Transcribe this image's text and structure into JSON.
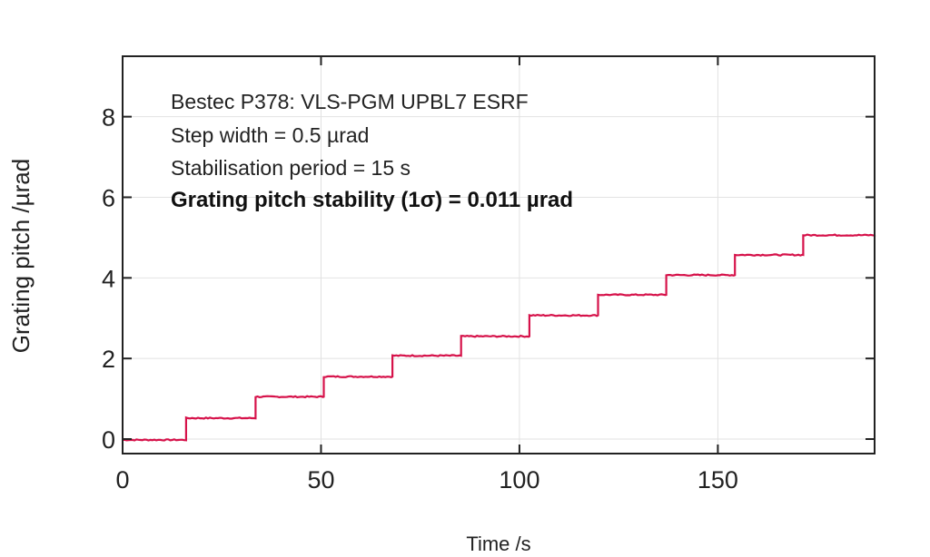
{
  "chart_data": {
    "type": "line",
    "title": "",
    "xlabel": "Time /s",
    "ylabel": "Grating pitch /µrad",
    "xlim": [
      0,
      189.5
    ],
    "ylim": [
      -0.36,
      9.5
    ],
    "xticks": [
      0,
      50,
      100,
      150
    ],
    "yticks": [
      0,
      2,
      4,
      6,
      8
    ],
    "grid": true,
    "annotations": [
      "Bestec P378: VLS-PGM UPBL7 ESRF",
      "Step width = 0.5 µrad",
      "Stabilisation period = 15 s",
      "Grating pitch stability (1σ) = 0.011 µrad"
    ],
    "series": [
      {
        "name": "Grating pitch",
        "color": "#d6124a",
        "step_times": [
          0,
          16,
          33.5,
          50.7,
          68,
          85.3,
          102.5,
          119.8,
          137,
          154.3,
          171.5,
          189.5
        ],
        "step_levels": [
          -0.02,
          0.52,
          1.05,
          1.55,
          2.07,
          2.55,
          3.07,
          3.58,
          4.07,
          4.57,
          5.06
        ]
      }
    ]
  }
}
